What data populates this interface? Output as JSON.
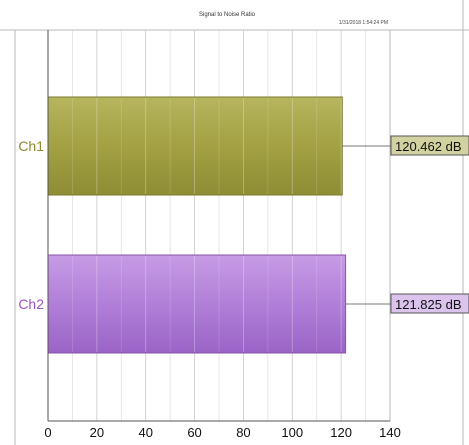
{
  "chart_data": {
    "type": "bar",
    "orientation": "horizontal",
    "title": "Signal to Noise Ratio",
    "timestamp": "1/31/2018 1:54:24 PM",
    "xlabel": "",
    "ylabel": "",
    "categories": [
      "Ch1",
      "Ch2"
    ],
    "values": [
      120.462,
      121.825
    ],
    "value_labels": [
      "120.462 dB",
      "121.825 dB"
    ],
    "xlim": [
      0,
      140
    ],
    "xticks": [
      "0",
      "20",
      "40",
      "60",
      "80",
      "100",
      "120",
      "140"
    ],
    "grid": true,
    "legend": "none",
    "colors": {
      "Ch1": {
        "fill": "#aaa84a",
        "stroke": "#7c7a2c",
        "text": "#8c8a2a",
        "label_bg": "#d2d2a0"
      },
      "Ch2": {
        "fill": "#b986dd",
        "stroke": "#8a52ad",
        "text": "#9b55c2",
        "label_bg": "#dcc3ee"
      }
    }
  },
  "logo": {
    "icon": "ap-logo-icon",
    "color": "#2e6fb5"
  }
}
